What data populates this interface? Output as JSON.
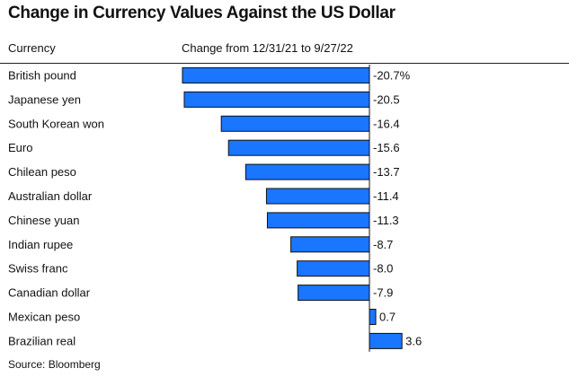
{
  "chart_data": {
    "type": "bar",
    "orientation": "horizontal",
    "title": "Change in Currency Values Against the US Dollar",
    "category_header": "Currency",
    "value_header": "Change from 12/31/21 to 9/27/22",
    "categories": [
      "British pound",
      "Japanese yen",
      "South Korean won",
      "Euro",
      "Chilean peso",
      "Australian dollar",
      "Chinese yuan",
      "Indian rupee",
      "Swiss franc",
      "Canadian dollar",
      "Mexican peso",
      "Brazilian real"
    ],
    "values": [
      -20.7,
      -20.5,
      -16.4,
      -15.6,
      -13.7,
      -11.4,
      -11.3,
      -8.7,
      -8.0,
      -7.9,
      0.7,
      3.6
    ],
    "value_labels": [
      "-20.7%",
      "-20.5",
      "-16.4",
      "-15.6",
      "-13.7",
      "-11.4",
      "-11.3",
      "-8.7",
      "-8.0",
      "-7.9",
      "0.7",
      "3.6"
    ],
    "unit": "%",
    "xlim": [
      -20.7,
      3.6
    ],
    "bar_color": "#1a75ff",
    "bar_edge_color": "#111111",
    "grid": false,
    "legend": "none",
    "source": "Source: Bloomberg"
  }
}
